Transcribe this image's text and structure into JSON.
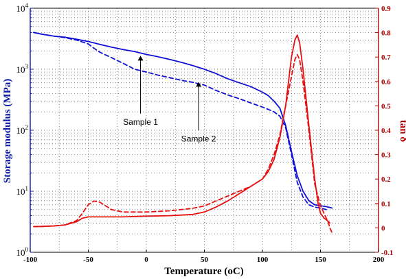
{
  "chart_data": {
    "type": "line",
    "xlabel": "Temperature (oC)",
    "ylabel_left": "Storage modulus (MPa)",
    "ylabel_right": "tan δ",
    "xlim": [
      -100,
      200
    ],
    "ylim_left": [
      1,
      10000
    ],
    "ylim_right": [
      -0.1,
      0.9
    ],
    "yscale_left": "log",
    "grid": true,
    "x_ticks": [
      -100,
      -50,
      0,
      50,
      100,
      150,
      200
    ],
    "x_tick_labels": [
      "-100",
      "-50",
      "0",
      "50",
      "100",
      "150",
      "200"
    ],
    "left_ticks": [
      1,
      10,
      100,
      1000,
      10000
    ],
    "right_ticks": [
      -0.1,
      0,
      0.1,
      0.2,
      0.3,
      0.4,
      0.5,
      0.6,
      0.7,
      0.8,
      0.9
    ],
    "right_tick_labels": [
      "-0.1",
      "0",
      "0.1",
      "0.2",
      "0.3",
      "0.4",
      "0.5",
      "0.6",
      "0.7",
      "0.8",
      "0.9"
    ],
    "colors": {
      "modulus": "#1010d8",
      "tan_delta": "#e81010",
      "left_axis": "#0b1aa8",
      "right_axis": "#b00000",
      "grid": "#4d4d4d"
    },
    "series": [
      {
        "axis": "left",
        "style": "solid",
        "color": "#1010d8",
        "x": [
          -97,
          -90,
          -80,
          -70,
          -60,
          -50,
          -40,
          -30,
          -20,
          -10,
          0,
          10,
          20,
          30,
          40,
          50,
          60,
          70,
          80,
          90,
          100,
          105,
          110,
          115,
          120,
          125,
          130,
          135,
          140,
          145,
          150,
          155,
          160
        ],
        "y": [
          4000,
          3750,
          3500,
          3350,
          3100,
          2850,
          2550,
          2300,
          2100,
          1950,
          1750,
          1600,
          1450,
          1300,
          1150,
          1000,
          850,
          700,
          600,
          520,
          420,
          370,
          300,
          230,
          120,
          45,
          18,
          10,
          7,
          6,
          5.8,
          5.6,
          5.3
        ]
      },
      {
        "axis": "left",
        "style": "dashed",
        "color": "#1010d8",
        "x": [
          -97,
          -90,
          -80,
          -70,
          -60,
          -50,
          -45,
          -40,
          -30,
          -20,
          -10,
          0,
          10,
          20,
          30,
          40,
          50,
          60,
          70,
          80,
          90,
          100,
          105,
          110,
          115,
          120,
          125,
          130,
          135,
          140,
          145,
          150,
          155
        ],
        "y": [
          4000,
          3750,
          3500,
          3300,
          3000,
          2600,
          2200,
          1900,
          1550,
          1250,
          1000,
          900,
          800,
          730,
          660,
          610,
          550,
          450,
          380,
          330,
          280,
          240,
          220,
          200,
          170,
          110,
          40,
          14,
          8,
          6,
          5.5,
          5.3,
          5.0
        ]
      },
      {
        "axis": "right",
        "style": "solid",
        "color": "#e81010",
        "x": [
          -97,
          -90,
          -80,
          -70,
          -60,
          -55,
          -50,
          -40,
          -20,
          0,
          20,
          40,
          50,
          60,
          70,
          80,
          90,
          100,
          105,
          110,
          115,
          120,
          122,
          125,
          128,
          130,
          132,
          135,
          140,
          145,
          148,
          150,
          153,
          156,
          158
        ],
        "y": [
          0.005,
          0.006,
          0.008,
          0.012,
          0.025,
          0.04,
          0.045,
          0.045,
          0.045,
          0.048,
          0.05,
          0.055,
          0.065,
          0.085,
          0.11,
          0.14,
          0.17,
          0.2,
          0.23,
          0.28,
          0.37,
          0.5,
          0.58,
          0.7,
          0.77,
          0.79,
          0.76,
          0.65,
          0.42,
          0.2,
          0.1,
          0.06,
          0.04,
          0.03,
          0.02
        ]
      },
      {
        "axis": "right",
        "style": "dashed",
        "color": "#e81010",
        "x": [
          -97,
          -90,
          -80,
          -70,
          -60,
          -55,
          -50,
          -45,
          -40,
          -35,
          -30,
          -20,
          0,
          20,
          40,
          50,
          60,
          70,
          80,
          90,
          100,
          105,
          110,
          115,
          120,
          125,
          128,
          130,
          132,
          135,
          140,
          145,
          150,
          153,
          155,
          157,
          158,
          160
        ],
        "y": [
          0.005,
          0.006,
          0.008,
          0.012,
          0.03,
          0.06,
          0.095,
          0.11,
          0.105,
          0.09,
          0.075,
          0.065,
          0.065,
          0.07,
          0.08,
          0.09,
          0.11,
          0.13,
          0.15,
          0.17,
          0.2,
          0.24,
          0.3,
          0.38,
          0.5,
          0.62,
          0.69,
          0.71,
          0.69,
          0.6,
          0.4,
          0.18,
          0.09,
          0.06,
          0.04,
          0.02,
          0.0,
          -0.02
        ]
      }
    ],
    "annotations": [
      {
        "text": "Sample 1",
        "arrow_to": [
          -5,
          1750
        ],
        "label_at": [
          -5,
          160
        ]
      },
      {
        "text": "Sample 2",
        "arrow_to": [
          45,
          650
        ],
        "label_at": [
          45,
          85
        ]
      }
    ]
  }
}
